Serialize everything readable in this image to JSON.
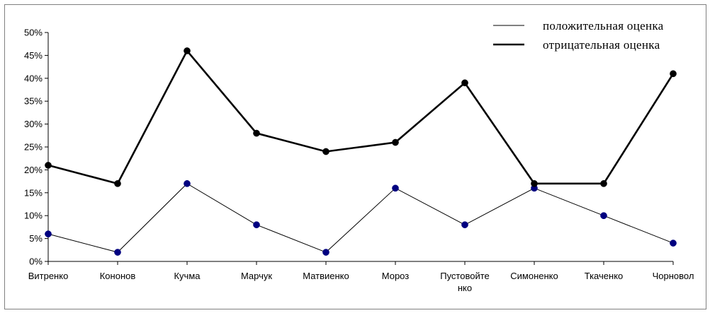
{
  "chart_data": {
    "type": "line",
    "categories": [
      "Витренко",
      "Кононов",
      "Кучма",
      "Марчук",
      "Матвиенко",
      "Мороз",
      "Пустовойте нко",
      "Симоненко",
      "Ткаченко",
      "Чорновол"
    ],
    "category_label_lines": [
      [
        "Витренко"
      ],
      [
        "Кононов"
      ],
      [
        "Кучма"
      ],
      [
        "Марчук"
      ],
      [
        "Матвиенко"
      ],
      [
        "Мороз"
      ],
      [
        "Пустовойте",
        "нко"
      ],
      [
        "Симоненко"
      ],
      [
        "Ткаченко"
      ],
      [
        "Чорновол"
      ]
    ],
    "series": [
      {
        "name": "положительная оценка",
        "values": [
          0.06,
          0.02,
          0.17,
          0.08,
          0.02,
          0.16,
          0.08,
          0.16,
          0.1,
          0.04
        ],
        "color": "#000000",
        "marker_color": "#000080"
      },
      {
        "name": "отрицательная оценка",
        "values": [
          0.21,
          0.17,
          0.46,
          0.28,
          0.24,
          0.26,
          0.39,
          0.17,
          0.17,
          0.41
        ],
        "color": "#000000",
        "marker_color": "#000000"
      }
    ],
    "y_ticks": [
      "0%",
      "5%",
      "10%",
      "15%",
      "20%",
      "25%",
      "30%",
      "35%",
      "40%",
      "45%",
      "50%"
    ],
    "ylim": [
      0,
      0.5
    ],
    "grid": false,
    "legend_position": "top-right",
    "title": "",
    "xlabel": "",
    "ylabel": ""
  }
}
